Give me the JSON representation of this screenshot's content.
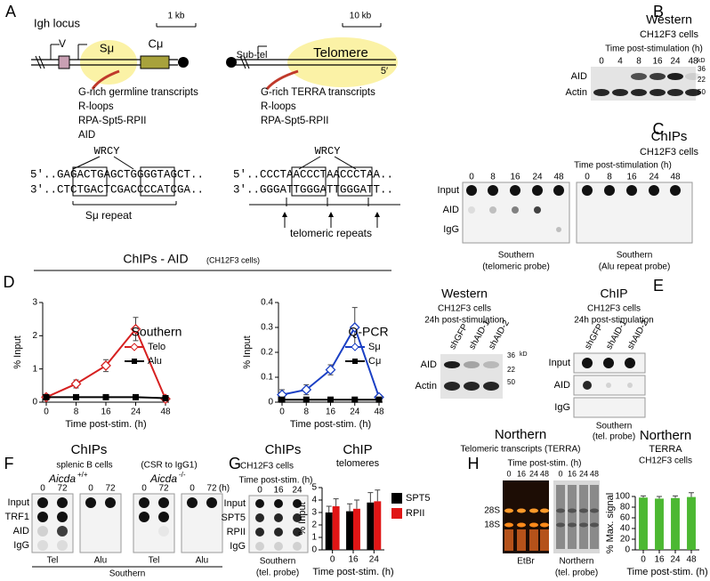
{
  "panels": {
    "A": {
      "letter": "A",
      "locus": "Igh locus",
      "scale_left": "1 kb",
      "v": "V",
      "s_mu": "Sμ",
      "c_mu": "Cμ",
      "left_notes": [
        "G-rich germline transcripts",
        "R-loops",
        "RPA-Spt5-RPII",
        "AID"
      ],
      "motif_left": "WRCY",
      "seq_left_top": "5′..GAGACTGAGCTGGGGTAGCT..",
      "seq_left_bottom": "3′..CTCTGACTCGACCCCATCGA..",
      "left_caption": "Sμ repeat",
      "scale_right": "10 kb",
      "subtel": "Sub-tel",
      "telomere": "Telomere",
      "tel_end": "5′",
      "right_notes": [
        "G-rich TERRA transcripts",
        "R-loops",
        "RPA-Spt5-RPII"
      ],
      "motif_right": "WRCY",
      "seq_right_top": "5′..CCCTAACCCTAACCCTAA..",
      "seq_right_bottom": "3′..GGGATTGGGATTGGGATT..",
      "right_caption": "telomeric repeats"
    },
    "B": {
      "letter": "B",
      "title": "Western",
      "cells": "CH12F3 cells",
      "time": "Time post-stimulation (h)",
      "lanes": [
        "0",
        "4",
        "8",
        "16",
        "24",
        "48"
      ],
      "rows": [
        "AID",
        "Actin"
      ],
      "markers": [
        "36",
        "22",
        "50"
      ],
      "unit": "kD"
    },
    "C": {
      "letter": "C",
      "title": "ChIPs",
      "cells": "CH12F3 cells",
      "time": "Time post-stimulation (h)",
      "lanes": [
        "0",
        "8",
        "16",
        "24",
        "48"
      ],
      "rows": [
        "Input",
        "AID",
        "IgG"
      ],
      "probe_left": [
        "Southern",
        "(telomeric probe)"
      ],
      "probe_right": [
        "Southern",
        "(Alu repeat probe)"
      ]
    },
    "D": {
      "letter": "D",
      "title": "ChIPs - AID",
      "subtitle": "(CH12F3 cells)"
    },
    "E": {
      "letter": "E",
      "western": "Western",
      "chip": "ChIP",
      "cells": "CH12F3 cells",
      "time": "24h post-stimulation",
      "lanes": [
        "shGFP",
        "shAID-1",
        "shAID-2"
      ],
      "western_rows": [
        "AID",
        "Actin"
      ],
      "markers": [
        "36",
        "22",
        "50"
      ],
      "unit": "kD",
      "chip_rows": [
        "Input",
        "AID",
        "IgG"
      ],
      "probe": [
        "Southern",
        "(tel. probe)"
      ]
    },
    "F": {
      "letter": "F",
      "title": "ChIPs",
      "cells": "splenic B cells",
      "csr": "(CSR to IgG1)",
      "gene": "Aicda",
      "wt_sup": "+/+",
      "ko_sup": "-/-",
      "lanes": [
        "0",
        "72"
      ],
      "unit": "(h)",
      "rows": [
        "Input",
        "TRF1",
        "AID",
        "IgG"
      ],
      "probes": [
        "Tel",
        "Alu",
        "Tel",
        "Alu"
      ],
      "method": "Southern"
    },
    "G": {
      "letter": "G",
      "title": "ChIPs",
      "cells": "CH12F3 cells",
      "time": "Time post-stim. (h)",
      "lanes": [
        "0",
        "16",
        "24"
      ],
      "rows": [
        "Input",
        "SPT5",
        "RPII",
        "IgG"
      ],
      "probe": [
        "Southern",
        "(tel. probe)"
      ]
    },
    "H": {
      "letter": "H",
      "title": "Northern",
      "subtitle": "Telomeric transcripts (TERRA)",
      "time": "Time post-stim. (h)",
      "lanes": [
        "0",
        "16",
        "24",
        "48"
      ],
      "markers": [
        "28S",
        "18S"
      ],
      "stains": [
        "EtBr",
        "Northern",
        "(tel. probe)"
      ]
    }
  },
  "chart_data": [
    {
      "type": "line",
      "title": "Southern",
      "categories": [
        "0",
        "8",
        "16",
        "24",
        "48"
      ],
      "series": [
        {
          "name": "Telo",
          "color": "#d62020",
          "marker": "diamond-open",
          "values": [
            0.15,
            0.55,
            1.1,
            2.2,
            0.1
          ],
          "errors": [
            0.05,
            0.12,
            0.18,
            0.35,
            0.05
          ]
        },
        {
          "name": "Alu",
          "color": "#000000",
          "marker": "square",
          "values": [
            0.15,
            0.15,
            0.15,
            0.15,
            0.12
          ]
        }
      ],
      "ylim": [
        0,
        3
      ],
      "yticks": [
        0,
        1,
        2,
        3
      ],
      "ylabel": "% Input",
      "xlabel": "Time post-stim. (h)"
    },
    {
      "type": "line",
      "title": "Q-PCR",
      "categories": [
        "0",
        "8",
        "16",
        "24",
        "48"
      ],
      "series": [
        {
          "name": "Sμ",
          "color": "#1a3fc4",
          "marker": "diamond-open",
          "values": [
            0.03,
            0.05,
            0.13,
            0.3,
            0.02
          ],
          "errors": [
            0.02,
            0.02,
            0.02,
            0.08,
            0.01
          ]
        },
        {
          "name": "Cμ",
          "color": "#000000",
          "marker": "square",
          "values": [
            0.01,
            0.01,
            0.01,
            0.01,
            0.01
          ]
        }
      ],
      "ylim": [
        0,
        0.4
      ],
      "yticks": [
        0,
        0.1,
        0.2,
        0.3,
        0.4
      ],
      "ylabel": "% Input",
      "xlabel": "Time post-stim. (h)"
    },
    {
      "type": "bar",
      "title": "ChIP",
      "subtitle": "telomeres",
      "categories": [
        "0",
        "16",
        "24"
      ],
      "series": [
        {
          "name": "SPT5",
          "color": "#000000",
          "values": [
            3.0,
            3.1,
            3.8
          ],
          "errors": [
            0.5,
            0.6,
            0.8
          ]
        },
        {
          "name": "RPII",
          "color": "#e01515",
          "values": [
            3.5,
            3.3,
            3.9
          ],
          "errors": [
            0.6,
            0.7,
            0.9
          ]
        }
      ],
      "ylim": [
        0,
        5
      ],
      "yticks": [
        0,
        1,
        2,
        3,
        4,
        5
      ],
      "ylabel": "% Input",
      "xlabel": "Time post-stim. (h)"
    },
    {
      "type": "bar",
      "title": "Northern",
      "subtitle": "TERRA",
      "cells": "CH12F3 cells",
      "categories": [
        "0",
        "16",
        "24",
        "48"
      ],
      "color": "#4cb832",
      "values": [
        98,
        96,
        97,
        99
      ],
      "errors": [
        3,
        4,
        4,
        8
      ],
      "ylim": [
        0,
        100
      ],
      "yticks": [
        0,
        20,
        40,
        60,
        80,
        100
      ],
      "ylabel": "% Max. signal",
      "xlabel": "Time post-stim. (h)"
    }
  ]
}
